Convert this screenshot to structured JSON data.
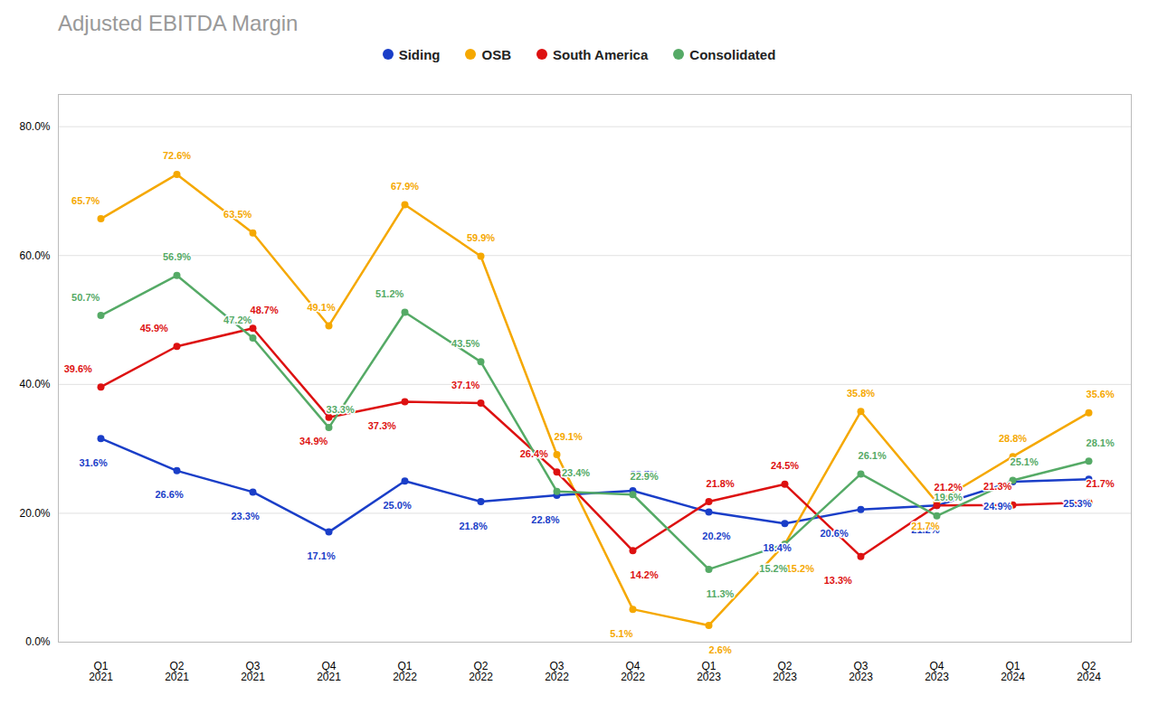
{
  "chart_data": {
    "type": "line",
    "title": "Adjusted EBITDA Margin",
    "categories": [
      "Q1\n2021",
      "Q2\n2021",
      "Q3\n2021",
      "Q4\n2021",
      "Q1\n2022",
      "Q2\n2022",
      "Q3\n2022",
      "Q4\n2022",
      "Q1\n2023",
      "Q2\n2023",
      "Q3\n2023",
      "Q4\n2023",
      "Q1\n2024",
      "Q2\n2024"
    ],
    "series": [
      {
        "name": "Siding",
        "color": "#1a3ec8",
        "values": [
          31.6,
          26.6,
          23.3,
          17.1,
          25.0,
          21.8,
          22.8,
          23.5,
          20.2,
          18.4,
          20.6,
          21.2,
          24.9,
          25.3
        ],
        "value_labels": [
          "31.6%",
          "26.6%",
          "23.3%",
          "17.1%",
          "25.0%",
          "21.8%",
          "22.8%",
          "23.5%",
          "20.2%",
          "18.4%",
          "20.6%",
          "21.2%",
          "24.9%",
          "25.3%"
        ]
      },
      {
        "name": "OSB",
        "color": "#f5a800",
        "values": [
          65.7,
          72.6,
          63.5,
          49.1,
          67.9,
          59.9,
          29.1,
          5.1,
          2.6,
          15.2,
          35.8,
          21.7,
          28.8,
          35.6
        ],
        "value_labels": [
          "65.7%",
          "72.6%",
          "63.5%",
          "49.1%",
          "67.9%",
          "59.9%",
          "29.1%",
          "5.1%",
          "2.6%",
          "15.2%",
          "35.8%",
          "21.7%",
          "28.8%",
          "35.6%"
        ]
      },
      {
        "name": "South America",
        "color": "#dd1111",
        "values": [
          39.6,
          45.9,
          48.7,
          34.9,
          37.3,
          37.1,
          26.4,
          14.2,
          21.8,
          24.5,
          13.3,
          21.2,
          21.3,
          21.7
        ],
        "value_labels": [
          "39.6%",
          "45.9%",
          "48.7%",
          "34.9%",
          "37.3%",
          "37.1%",
          "26.4%",
          "14.2%",
          "21.8%",
          "24.5%",
          "13.3%",
          "21.2%",
          "21.3%",
          "21.7%"
        ]
      },
      {
        "name": "Consolidated",
        "color": "#55aa66",
        "values": [
          50.7,
          56.9,
          47.2,
          33.3,
          51.2,
          43.5,
          23.4,
          22.9,
          11.3,
          15.2,
          26.1,
          19.6,
          25.1,
          28.1
        ],
        "value_labels": [
          "50.7%",
          "56.9%",
          "47.2%",
          "33.3%",
          "51.2%",
          "43.5%",
          "23.4%",
          "22.9%",
          "11.3%",
          "15.2%",
          "26.1%",
          "19.6%",
          "25.1%",
          "28.1%"
        ]
      }
    ],
    "ylim": [
      0,
      85
    ],
    "yticks": [
      {
        "value": 0,
        "label": "0.0%"
      },
      {
        "value": 20,
        "label": "20.0%"
      },
      {
        "value": 40,
        "label": "40.0%"
      },
      {
        "value": 60,
        "label": "60.0%"
      },
      {
        "value": 80,
        "label": "80.0%"
      }
    ],
    "grid": true,
    "legend": "top",
    "marker": "circle",
    "data_labels": true
  }
}
